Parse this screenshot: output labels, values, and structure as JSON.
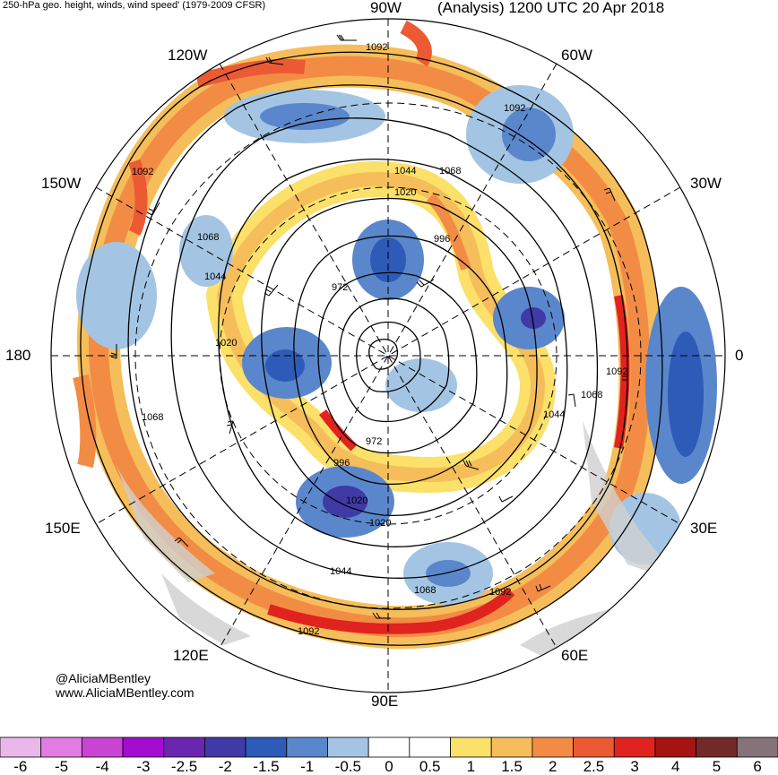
{
  "header": {
    "left": "250-hPa geo. height, winds, wind speed' (1979-2009 CFSR)",
    "right": "(Analysis) 1200 UTC 20 Apr 2018"
  },
  "longitude_labels": {
    "n90w": "90W",
    "n120w": "120W",
    "n60w": "60W",
    "n150w": "150W",
    "n30w": "30W",
    "n180": "180",
    "n0": "0",
    "n150e": "150E",
    "n30e": "30E",
    "n120e": "120E",
    "n60e": "60E",
    "n90e": "90E"
  },
  "contour_labels": {
    "c1092_top": "1092",
    "c1092_ur": "1092",
    "c1092_left": "1092",
    "c1068_a": "1068",
    "c1044_a": "1044",
    "c1020_a": "1020",
    "c996_a": "996",
    "c972_a": "972",
    "c1044_b": "1044",
    "c1068_b": "1068",
    "c1020_b": "1020",
    "c1092_r": "1092",
    "c1068_r": "1068",
    "c1044_r": "1044",
    "c1068_l": "1068",
    "c972_b": "972",
    "c996_b": "996",
    "c1020_c": "1020",
    "c1020_d": "1020",
    "c1044_c": "1044",
    "c1068_c": "1068",
    "c1092_b": "1092",
    "c1092_bl": "1092"
  },
  "credits": {
    "handle": "@AliciaMBentley",
    "url": "www.AliciaMBentley.com"
  },
  "colorbar": {
    "ticks": [
      "-6",
      "-5",
      "-4",
      "-3",
      "-2.5",
      "-2",
      "-1.5",
      "-1",
      "-0.5",
      "0",
      "0.5",
      "1",
      "1.5",
      "2",
      "2.5",
      "3",
      "4",
      "5",
      "6"
    ],
    "colors": [
      "#e9b7e9",
      "#e27be3",
      "#c944d3",
      "#a40dcf",
      "#6b26b0",
      "#3f3aa6",
      "#2e5bb8",
      "#5a87cc",
      "#a3c5e3",
      "#ffffff",
      "#ffffff",
      "#fbe06a",
      "#f5be5a",
      "#f28c45",
      "#ec5a34",
      "#e0231f",
      "#a51412",
      "#752a2a",
      "#86737a"
    ]
  }
}
